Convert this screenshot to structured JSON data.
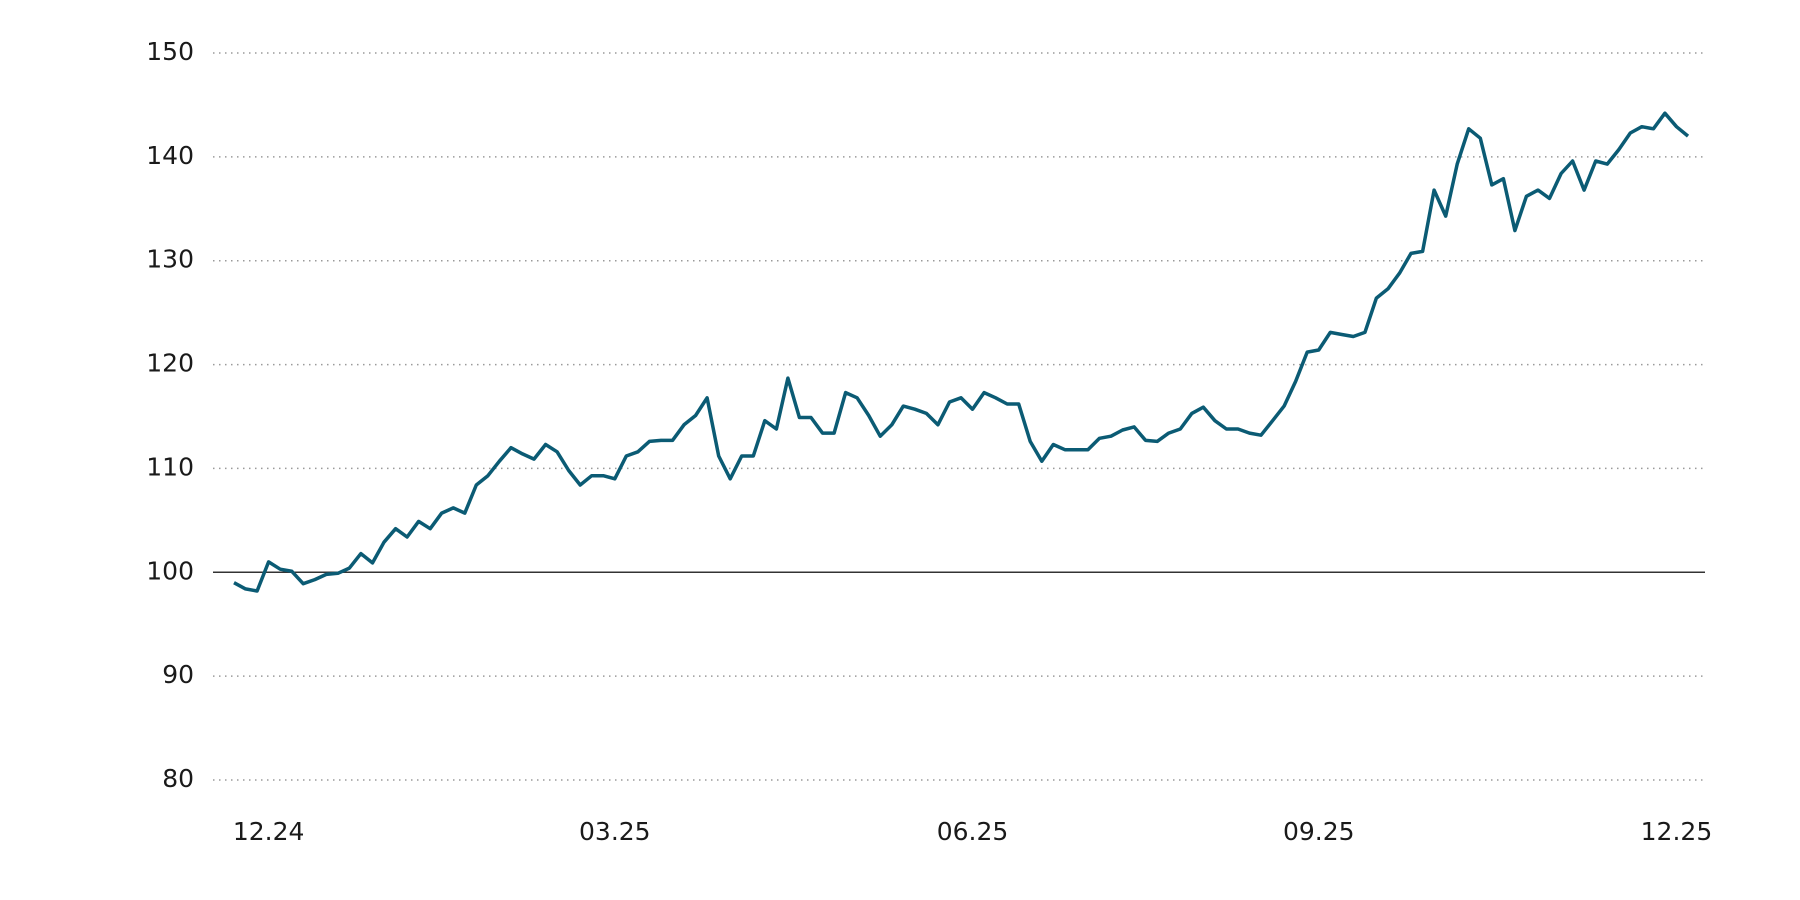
{
  "chart_data": {
    "type": "line",
    "categories": [
      null,
      null,
      null,
      "12.24",
      null,
      null,
      null,
      null,
      null,
      null,
      null,
      null,
      null,
      null,
      null,
      null,
      null,
      null,
      null,
      null,
      null,
      null,
      null,
      null,
      null,
      null,
      null,
      null,
      null,
      null,
      null,
      null,
      null,
      "03.25",
      null,
      null,
      null,
      null,
      null,
      null,
      null,
      null,
      null,
      null,
      null,
      null,
      null,
      null,
      null,
      null,
      null,
      null,
      null,
      null,
      null,
      null,
      null,
      null,
      null,
      null,
      null,
      null,
      null,
      null,
      "06.25",
      null,
      null,
      null,
      null,
      null,
      null,
      null,
      null,
      null,
      null,
      null,
      null,
      null,
      null,
      null,
      null,
      null,
      null,
      null,
      null,
      null,
      null,
      null,
      null,
      null,
      null,
      null,
      null,
      null,
      "09.25",
      null,
      null,
      null,
      null,
      null,
      null,
      null,
      null,
      null,
      null,
      null,
      null,
      null,
      null,
      null,
      null,
      null,
      null,
      null,
      null,
      null,
      null,
      null,
      null,
      null,
      null,
      null,
      null,
      null,
      null,
      "12.25",
      null
    ],
    "series": [
      {
        "color": "#0b5b74",
        "values": [
          99.0,
          98.4,
          98.2,
          101.0,
          100.3,
          100.1,
          98.9,
          99.3,
          99.8,
          99.9,
          100.4,
          101.8,
          100.9,
          102.9,
          104.2,
          103.4,
          104.9,
          104.2,
          105.7,
          106.2,
          105.7,
          108.4,
          109.3,
          110.7,
          112.0,
          111.4,
          110.9,
          112.3,
          111.6,
          109.8,
          108.4,
          109.3,
          109.3,
          109.0,
          111.2,
          111.6,
          112.6,
          112.7,
          112.7,
          114.2,
          115.1,
          116.8,
          111.2,
          109.0,
          111.2,
          111.2,
          114.6,
          113.8,
          118.7,
          114.9,
          114.9,
          113.4,
          113.4,
          117.3,
          116.8,
          115.1,
          113.1,
          114.2,
          116.0,
          115.7,
          115.3,
          114.2,
          116.4,
          116.8,
          115.7,
          117.3,
          116.8,
          116.2,
          116.2,
          112.6,
          110.7,
          112.3,
          111.8,
          111.8,
          111.8,
          112.9,
          113.1,
          113.7,
          114.0,
          112.7,
          112.6,
          113.4,
          113.8,
          115.3,
          115.9,
          114.6,
          113.8,
          113.8,
          113.4,
          113.2,
          114.6,
          116.0,
          118.4,
          121.2,
          121.4,
          123.1,
          122.9,
          122.7,
          123.1,
          126.4,
          127.3,
          128.8,
          130.7,
          130.9,
          136.8,
          134.3,
          139.3,
          142.7,
          141.8,
          137.3,
          137.9,
          132.9,
          136.2,
          136.8,
          136.0,
          138.4,
          139.6,
          136.8,
          139.6,
          139.3,
          140.7,
          142.3,
          142.9,
          142.7,
          144.2,
          142.9,
          142.0
        ]
      }
    ],
    "ylim": [
      80,
      150
    ],
    "yticks": [
      80,
      90,
      100,
      110,
      120,
      130,
      140,
      150
    ],
    "grid": true,
    "reference_line": 100
  }
}
